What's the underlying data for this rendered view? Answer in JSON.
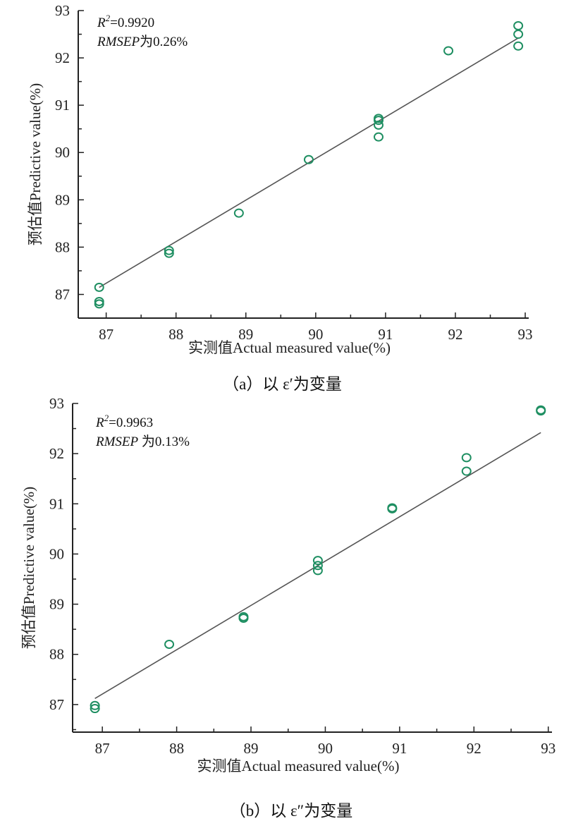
{
  "colors": {
    "marker": "#1f8f62",
    "fit_line": "#555555",
    "axis": "#222222"
  },
  "chart_data": [
    {
      "type": "scatter",
      "caption": "（a）以 ε′为变量",
      "xlabel": "实测值Actual measured value(%)",
      "ylabel": "预估值Predictive value(%)",
      "r2_label": "R",
      "r2_value": "=0.9920",
      "rmsep_label": "RMSEP",
      "rmsep_value": "为0.26%",
      "xlim": [
        86.6,
        93.05
      ],
      "ylim": [
        86.5,
        93
      ],
      "xticks": [
        "87",
        "88",
        "89",
        "90",
        "91",
        "92",
        "93"
      ],
      "yticks": [
        "87",
        "88",
        "89",
        "90",
        "91",
        "92",
        "93"
      ],
      "points": [
        [
          86.9,
          87.15
        ],
        [
          86.9,
          86.85
        ],
        [
          86.9,
          86.8
        ],
        [
          87.9,
          87.93
        ],
        [
          87.9,
          87.87
        ],
        [
          88.9,
          88.72
        ],
        [
          89.9,
          89.85
        ],
        [
          90.9,
          90.72
        ],
        [
          90.9,
          90.68
        ],
        [
          90.9,
          90.58
        ],
        [
          90.9,
          90.33
        ],
        [
          91.9,
          92.15
        ],
        [
          92.9,
          92.68
        ],
        [
          92.9,
          92.5
        ],
        [
          92.9,
          92.25
        ]
      ],
      "fit_line": [
        [
          86.9,
          87.15
        ],
        [
          92.9,
          92.42
        ]
      ]
    },
    {
      "type": "scatter",
      "caption": "（b）以 ε″为变量",
      "xlabel": "实测值Actual measured value(%)",
      "ylabel": "预估值Predictive value(%)",
      "r2_label": "R",
      "r2_value": "=0.9963",
      "rmsep_label": "RMSEP",
      "rmsep_value": " 为0.13%",
      "xlim": [
        86.6,
        93.05
      ],
      "ylim": [
        86.45,
        93
      ],
      "xticks": [
        "87",
        "88",
        "89",
        "90",
        "91",
        "92",
        "93"
      ],
      "yticks": [
        "87",
        "88",
        "89",
        "90",
        "91",
        "92",
        "93"
      ],
      "points": [
        [
          86.9,
          86.98
        ],
        [
          86.9,
          86.92
        ],
        [
          87.9,
          88.2
        ],
        [
          88.9,
          88.75
        ],
        [
          88.9,
          88.72
        ],
        [
          89.9,
          89.87
        ],
        [
          89.9,
          89.77
        ],
        [
          89.9,
          89.67
        ],
        [
          90.9,
          90.92
        ],
        [
          90.9,
          90.9
        ],
        [
          91.9,
          91.92
        ],
        [
          91.9,
          91.65
        ],
        [
          92.9,
          92.87
        ],
        [
          92.9,
          92.85
        ]
      ],
      "fit_line": [
        [
          86.9,
          87.12
        ],
        [
          92.9,
          92.42
        ]
      ]
    }
  ]
}
